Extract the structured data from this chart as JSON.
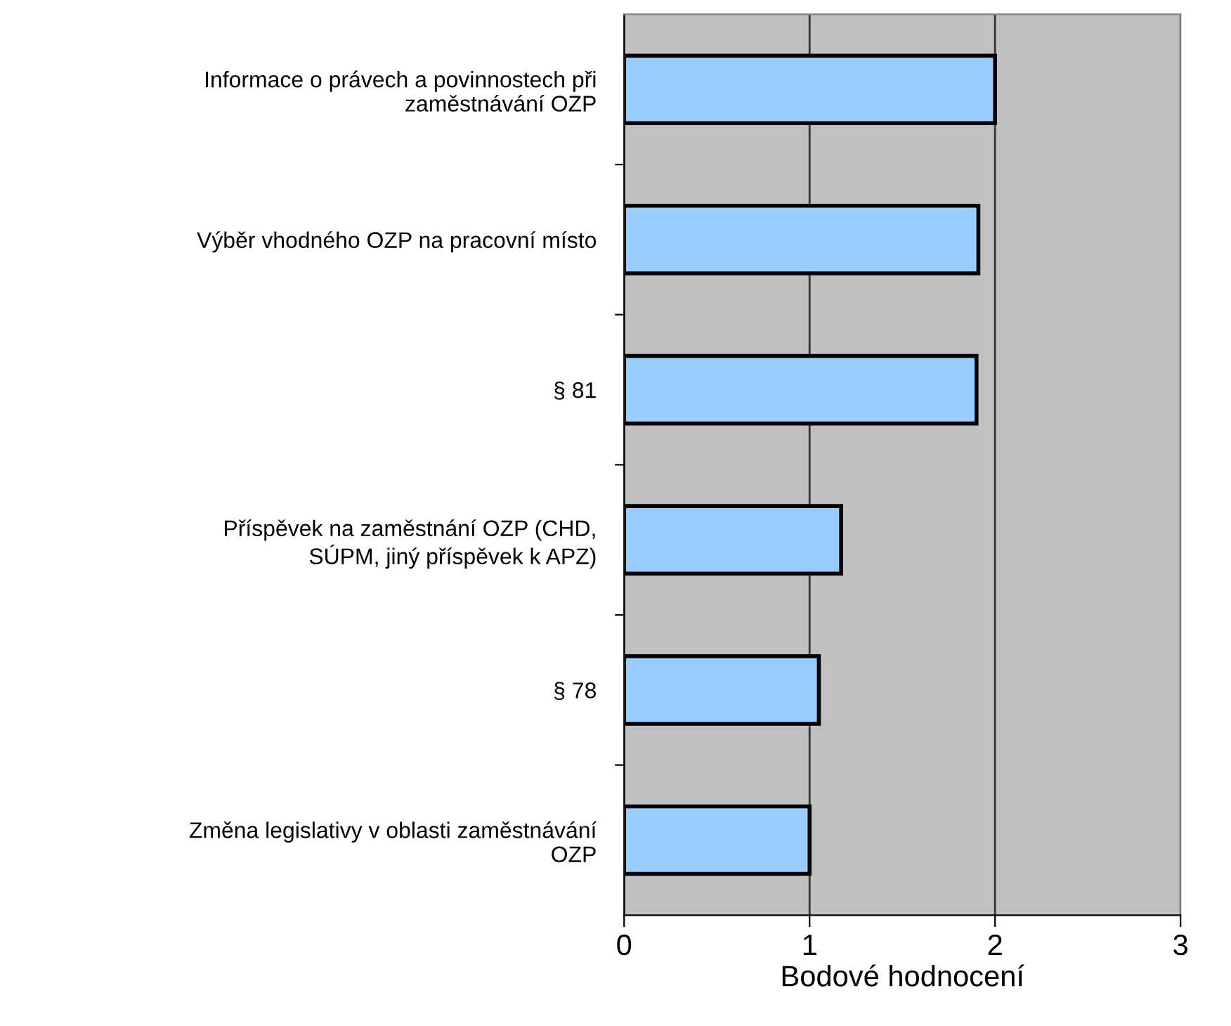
{
  "chart_data": {
    "type": "bar",
    "orientation": "horizontal",
    "xlabel": "Bodové hodnocení",
    "categories": [
      "Informace o právech a povinnostech při\nzaměstnávání OZP",
      "Výběr vhodného OZP na pracovní místo",
      "§ 81",
      "Příspěvek na zaměstnání OZP (CHD,\nSÚPM, jiný příspěvek k APZ)",
      "§ 78",
      "Změna legislativy v oblasti zaměstnávání\nOZP"
    ],
    "values": [
      2.0,
      1.91,
      1.9,
      1.17,
      1.05,
      1.0
    ],
    "color": "#99ccff",
    "xlim": [
      0,
      3
    ],
    "xticks": [
      0,
      1,
      2,
      3
    ],
    "grid": "x",
    "legend": false
  }
}
